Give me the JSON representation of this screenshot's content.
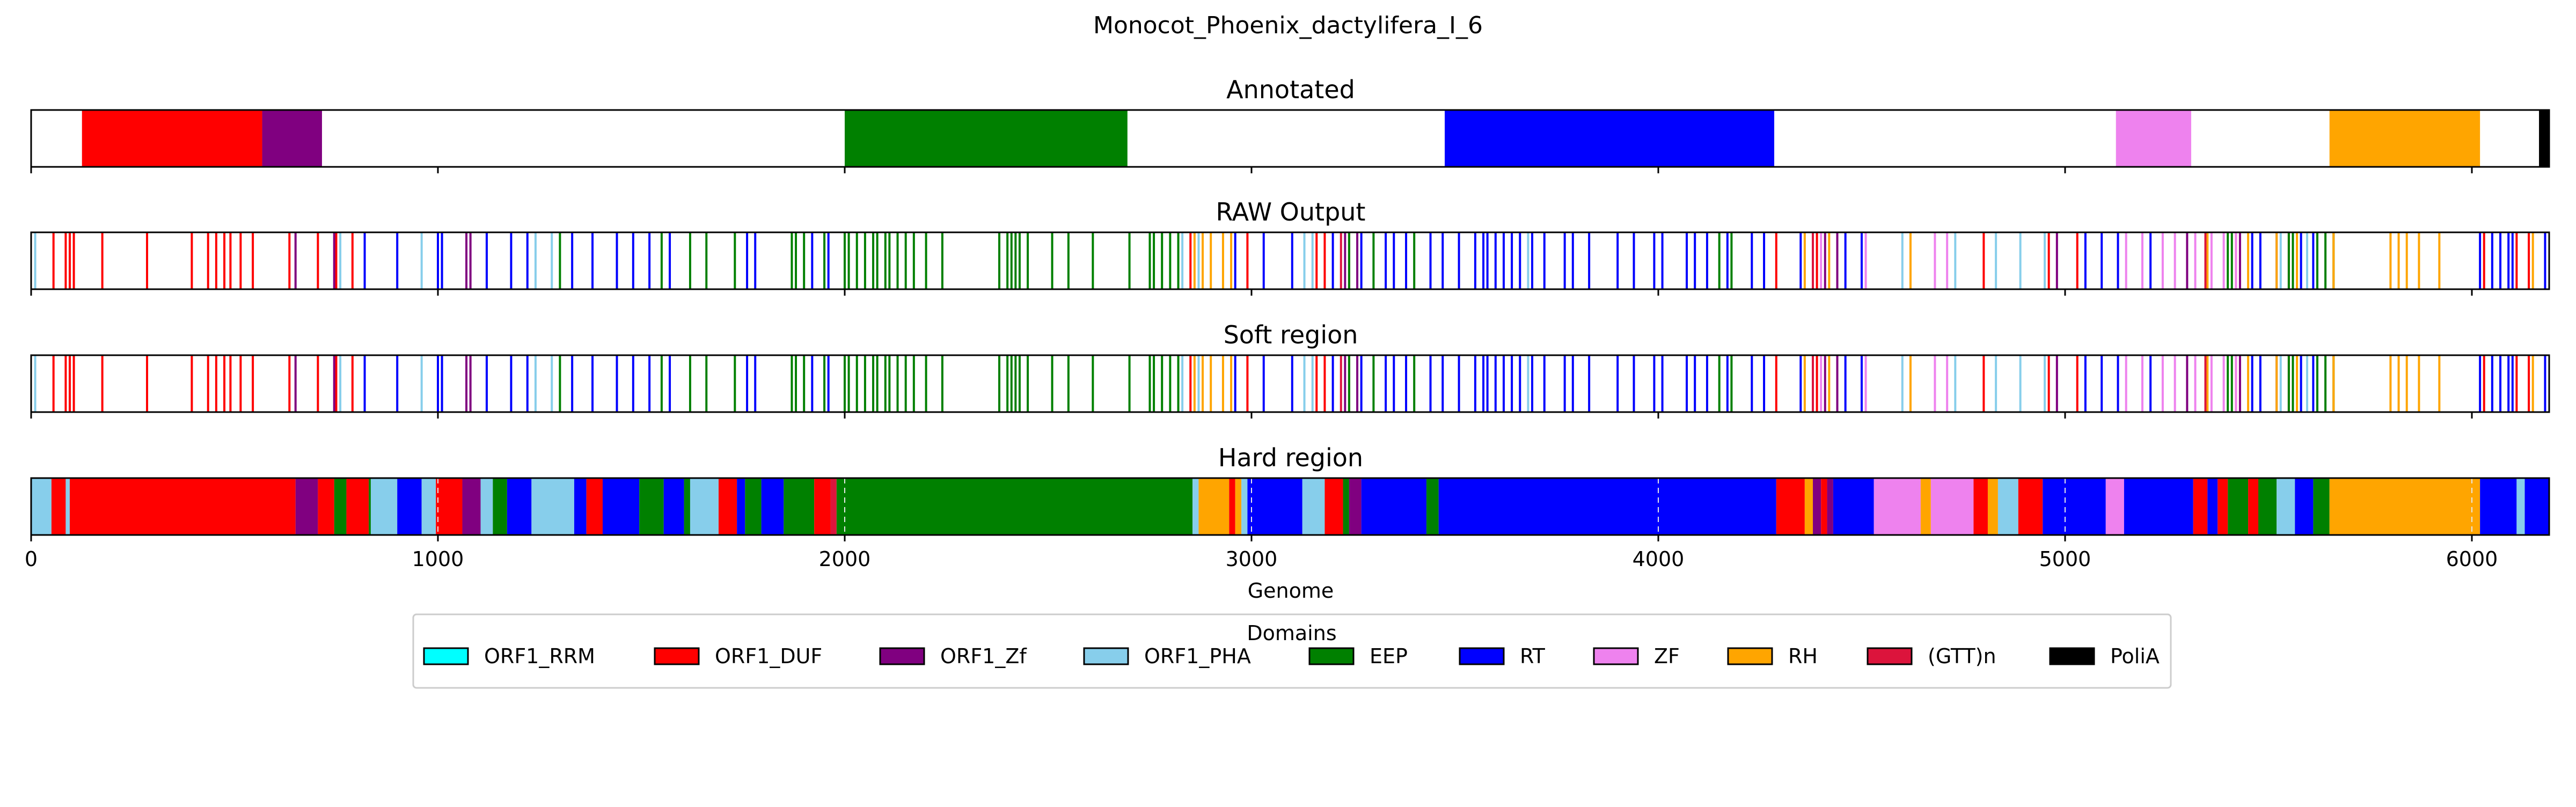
{
  "colors": {
    "ORF1_RRM": "#00ffff",
    "ORF1_DUF": "#ff0000",
    "ORF1_Zf": "#800080",
    "ORF1_PHA": "#87ceeb",
    "EEP": "#008000",
    "RT": "#0000ff",
    "ZF": "#ee82ee",
    "RH": "#ffa500",
    "(GTT)n": "#dc143c",
    "PoliA": "#000000"
  },
  "chart_data": {
    "type": "bar",
    "title": "Monocot_Phoenix_dactylifera_I_6",
    "xlabel": "Genome",
    "xlim": [
      0,
      6190
    ],
    "x_ticks": [
      0,
      1000,
      2000,
      3000,
      4000,
      5000,
      6000
    ],
    "x_tick_labels": [
      "0",
      "1000",
      "2000",
      "3000",
      "4000",
      "5000",
      "6000"
    ],
    "legend": {
      "title": "Domains",
      "placement": "bottom-center",
      "entries": [
        "ORF1_RRM",
        "ORF1_DUF",
        "ORF1_Zf",
        "ORF1_PHA",
        "EEP",
        "RT",
        "ZF",
        "RH",
        "(GTT)n",
        "PoliA"
      ]
    },
    "panels": [
      {
        "title": "Annotated",
        "style": "region",
        "segments": [
          {
            "domain": "ORF1_DUF",
            "start": 125,
            "end": 568
          },
          {
            "domain": "ORF1_Zf",
            "start": 568,
            "end": 715
          },
          {
            "domain": "EEP",
            "start": 2000,
            "end": 2695
          },
          {
            "domain": "RT",
            "start": 3475,
            "end": 4285
          },
          {
            "domain": "ZF",
            "start": 5125,
            "end": 5310
          },
          {
            "domain": "RH",
            "start": 5650,
            "end": 6020
          },
          {
            "domain": "PoliA",
            "start": 6165,
            "end": 6190
          }
        ]
      },
      {
        "title": "RAW Output",
        "style": "lines",
        "groups": [
          {
            "domain": "ORF1_PHA",
            "positions": [
              10,
              760,
              960,
              1010,
              1120,
              1240,
              1280,
              2830,
              2870,
              3130,
              3150,
              3680,
              4600,
              4730,
              4830,
              4890,
              4950,
              5530,
              5560,
              5595,
              6050
            ]
          },
          {
            "domain": "ORF1_DUF",
            "positions": [
              55,
              85,
              95,
              105,
              175,
              285,
              395,
              435,
              455,
              475,
              490,
              515,
              545,
              635,
              705,
              750,
              790,
              2850,
              2990,
              3160,
              3180,
              3240,
              4290,
              4390,
              4800,
              4960,
              5030,
              5550,
              6030,
              6110,
              6140
            ]
          },
          {
            "domain": "ORF1_Zf",
            "positions": [
              650,
              745,
              1070,
              1080,
              3230,
              3260,
              4410,
              4440,
              4980,
              5300,
              5430
            ]
          },
          {
            "domain": "RT",
            "positions": [
              820,
              900,
              1000,
              1010,
              1120,
              1180,
              1220,
              1330,
              1380,
              1440,
              1480,
              1520,
              1570,
              1760,
              1780,
              1920,
              1960,
              2960,
              3030,
              3100,
              3200,
              3270,
              3330,
              3350,
              3380,
              3440,
              3470,
              3510,
              3550,
              3570,
              3580,
              3600,
              3620,
              3640,
              3660,
              3690,
              3720,
              3770,
              3790,
              3830,
              3900,
              3940,
              3990,
              4010,
              4070,
              4090,
              4120,
              4170,
              4230,
              4260,
              4350,
              4460,
              4500,
              5050,
              5090,
              5130,
              5210,
              5460,
              5480,
              5520,
              5580,
              5610,
              6020,
              6050,
              6070,
              6090,
              6100,
              6180
            ]
          },
          {
            "domain": "EEP",
            "positions": [
              1300,
              1550,
              1620,
              1660,
              1730,
              1870,
              1880,
              1900,
              1950,
              2000,
              2010,
              2030,
              2050,
              2070,
              2080,
              2100,
              2110,
              2130,
              2150,
              2170,
              2200,
              2240,
              2380,
              2400,
              2410,
              2420,
              2430,
              2450,
              2510,
              2550,
              2610,
              2700,
              2750,
              2760,
              2780,
              2800,
              2820,
              3240,
              3300,
              3400,
              4150,
              4180,
              5400,
              5410,
              5550,
              5560,
              5620,
              5640,
              5660
            ]
          },
          {
            "domain": "RH",
            "positions": [
              2860,
              2880,
              2900,
              2930,
              2950,
              4360,
              4380,
              4420,
              4620,
              5350,
              5420,
              5450,
              5520,
              5570,
              5660,
              5800,
              5820,
              5840,
              5870,
              5920,
              6150
            ]
          },
          {
            "domain": "ZF",
            "positions": [
              4400,
              4510,
              4680,
              4710,
              5150,
              5190,
              5240,
              5270,
              5320,
              5360,
              5390,
              5420
            ]
          },
          {
            "domain": "(GTT)n",
            "positions": [
              3220,
              4380,
              5345
            ]
          }
        ]
      },
      {
        "title": "Soft region",
        "style": "lines",
        "same_as_panel": 1
      },
      {
        "title": "Hard region",
        "style": "region",
        "segments": [
          {
            "domain": "ORF1_PHA",
            "start": 0,
            "end": 50
          },
          {
            "domain": "ORF1_DUF",
            "start": 50,
            "end": 85
          },
          {
            "domain": "ORF1_PHA",
            "start": 85,
            "end": 95
          },
          {
            "domain": "ORF1_DUF",
            "start": 95,
            "end": 650
          },
          {
            "domain": "ORF1_Zf",
            "start": 650,
            "end": 705
          },
          {
            "domain": "ORF1_DUF",
            "start": 705,
            "end": 745
          },
          {
            "domain": "EEP",
            "start": 745,
            "end": 775
          },
          {
            "domain": "ORF1_DUF",
            "start": 775,
            "end": 830
          },
          {
            "domain": "EEP",
            "start": 830,
            "end": 835
          },
          {
            "domain": "ORF1_PHA",
            "start": 835,
            "end": 900
          },
          {
            "domain": "RT",
            "start": 900,
            "end": 960
          },
          {
            "domain": "ORF1_PHA",
            "start": 960,
            "end": 995
          },
          {
            "domain": "ORF1_DUF",
            "start": 995,
            "end": 1060
          },
          {
            "domain": "ORF1_Zf",
            "start": 1060,
            "end": 1105
          },
          {
            "domain": "ORF1_PHA",
            "start": 1105,
            "end": 1135
          },
          {
            "domain": "EEP",
            "start": 1135,
            "end": 1170
          },
          {
            "domain": "RT",
            "start": 1170,
            "end": 1230
          },
          {
            "domain": "ORF1_PHA",
            "start": 1230,
            "end": 1335
          },
          {
            "domain": "RT",
            "start": 1335,
            "end": 1365
          },
          {
            "domain": "ORF1_DUF",
            "start": 1365,
            "end": 1405
          },
          {
            "domain": "RT",
            "start": 1405,
            "end": 1495
          },
          {
            "domain": "EEP",
            "start": 1495,
            "end": 1555
          },
          {
            "domain": "RT",
            "start": 1555,
            "end": 1605
          },
          {
            "domain": "EEP",
            "start": 1605,
            "end": 1620
          },
          {
            "domain": "ORF1_PHA",
            "start": 1620,
            "end": 1690
          },
          {
            "domain": "ORF1_DUF",
            "start": 1690,
            "end": 1735
          },
          {
            "domain": "RT",
            "start": 1735,
            "end": 1755
          },
          {
            "domain": "EEP",
            "start": 1755,
            "end": 1795
          },
          {
            "domain": "RT",
            "start": 1795,
            "end": 1850
          },
          {
            "domain": "EEP",
            "start": 1850,
            "end": 1925
          },
          {
            "domain": "ORF1_DUF",
            "start": 1925,
            "end": 1965
          },
          {
            "domain": "(GTT)n",
            "start": 1965,
            "end": 1980
          },
          {
            "domain": "EEP",
            "start": 1980,
            "end": 2855
          },
          {
            "domain": "ORF1_PHA",
            "start": 2855,
            "end": 2870
          },
          {
            "domain": "RH",
            "start": 2870,
            "end": 2945
          },
          {
            "domain": "ORF1_DUF",
            "start": 2945,
            "end": 2960
          },
          {
            "domain": "RH",
            "start": 2960,
            "end": 2975
          },
          {
            "domain": "ORF1_PHA",
            "start": 2975,
            "end": 2990
          },
          {
            "domain": "RT",
            "start": 2990,
            "end": 3125
          },
          {
            "domain": "ORF1_PHA",
            "start": 3125,
            "end": 3180
          },
          {
            "domain": "ORF1_DUF",
            "start": 3180,
            "end": 3225
          },
          {
            "domain": "EEP",
            "start": 3225,
            "end": 3240
          },
          {
            "domain": "ORF1_Zf",
            "start": 3240,
            "end": 3270
          },
          {
            "domain": "RT",
            "start": 3270,
            "end": 3430
          },
          {
            "domain": "EEP",
            "start": 3430,
            "end": 3460
          },
          {
            "domain": "RT",
            "start": 3460,
            "end": 4290
          },
          {
            "domain": "ORF1_DUF",
            "start": 4290,
            "end": 4360
          },
          {
            "domain": "RH",
            "start": 4360,
            "end": 4380
          },
          {
            "domain": "ORF1_Zf",
            "start": 4380,
            "end": 4400
          },
          {
            "domain": "ORF1_DUF",
            "start": 4400,
            "end": 4415
          },
          {
            "domain": "ORF1_Zf",
            "start": 4415,
            "end": 4430
          },
          {
            "domain": "RT",
            "start": 4430,
            "end": 4530
          },
          {
            "domain": "ZF",
            "start": 4530,
            "end": 4645
          },
          {
            "domain": "RH",
            "start": 4645,
            "end": 4670
          },
          {
            "domain": "ZF",
            "start": 4670,
            "end": 4775
          },
          {
            "domain": "ORF1_DUF",
            "start": 4775,
            "end": 4810
          },
          {
            "domain": "RH",
            "start": 4810,
            "end": 4835
          },
          {
            "domain": "ORF1_PHA",
            "start": 4835,
            "end": 4885
          },
          {
            "domain": "ORF1_DUF",
            "start": 4885,
            "end": 4945
          },
          {
            "domain": "RT",
            "start": 4945,
            "end": 5100
          },
          {
            "domain": "ZF",
            "start": 5100,
            "end": 5145
          },
          {
            "domain": "RT",
            "start": 5145,
            "end": 5315
          },
          {
            "domain": "ORF1_DUF",
            "start": 5315,
            "end": 5350
          },
          {
            "domain": "RT",
            "start": 5350,
            "end": 5375
          },
          {
            "domain": "ORF1_DUF",
            "start": 5375,
            "end": 5400
          },
          {
            "domain": "EEP",
            "start": 5400,
            "end": 5450
          },
          {
            "domain": "ORF1_DUF",
            "start": 5450,
            "end": 5475
          },
          {
            "domain": "EEP",
            "start": 5475,
            "end": 5520
          },
          {
            "domain": "ORF1_PHA",
            "start": 5520,
            "end": 5565
          },
          {
            "domain": "RT",
            "start": 5565,
            "end": 5610
          },
          {
            "domain": "EEP",
            "start": 5610,
            "end": 5650
          },
          {
            "domain": "RH",
            "start": 5650,
            "end": 6020
          },
          {
            "domain": "RT",
            "start": 6020,
            "end": 6110
          },
          {
            "domain": "ORF1_PHA",
            "start": 6110,
            "end": 6130
          },
          {
            "domain": "RT",
            "start": 6130,
            "end": 6190
          }
        ]
      }
    ]
  }
}
